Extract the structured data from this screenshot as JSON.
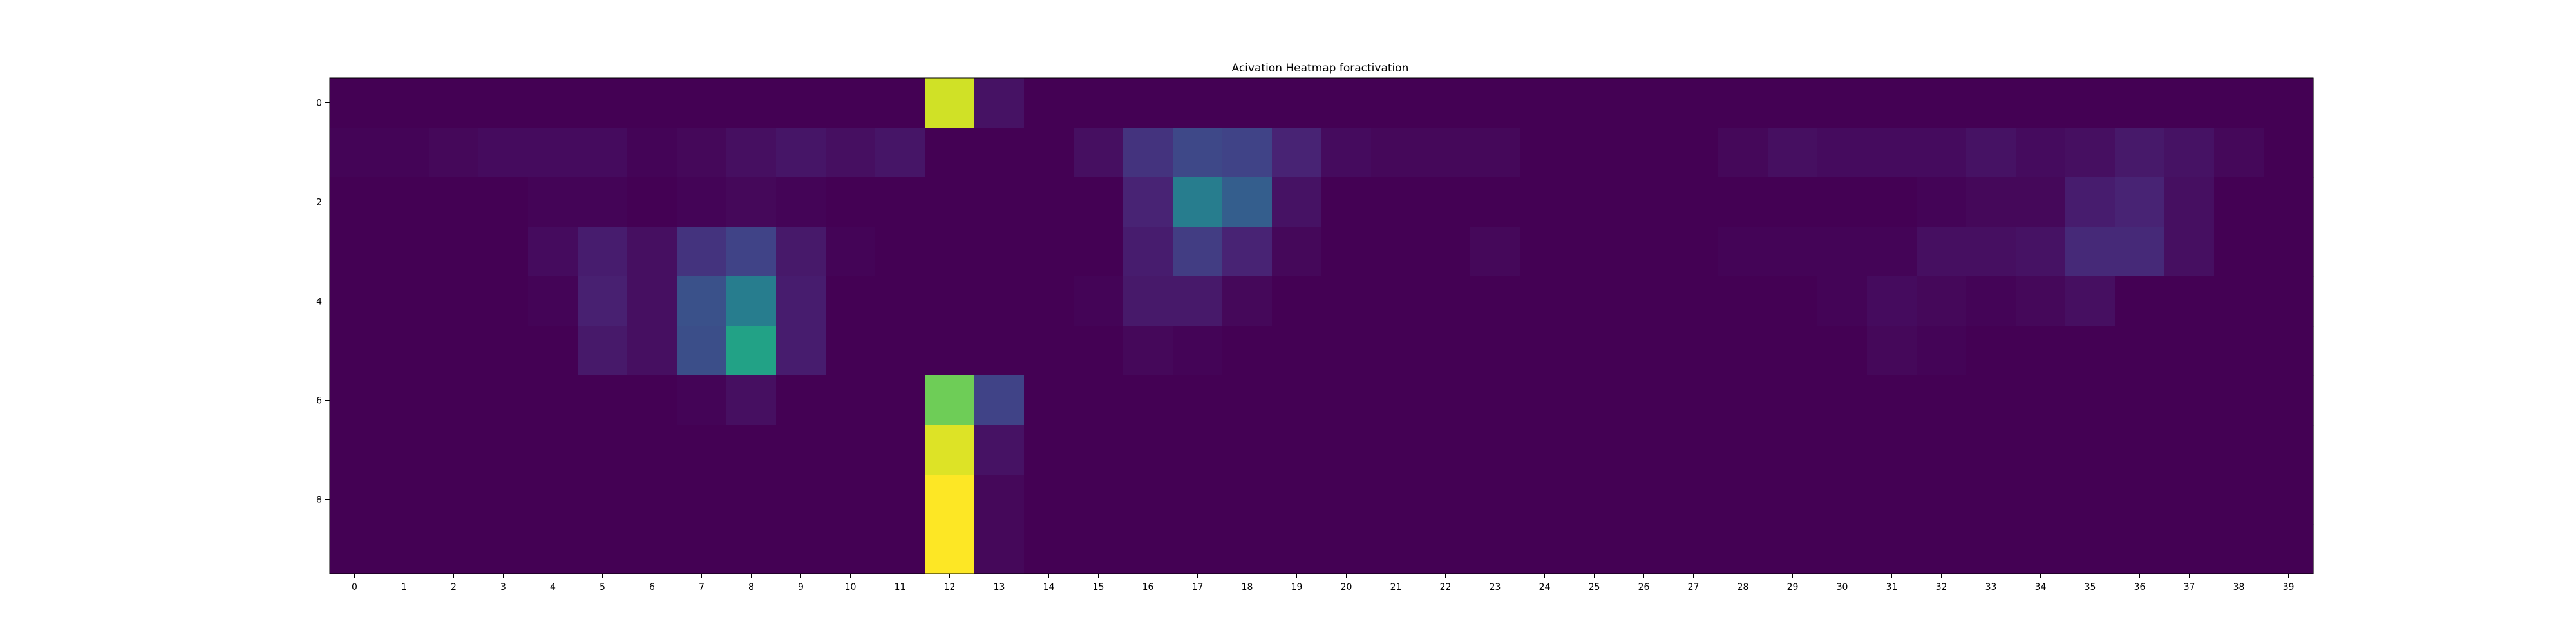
{
  "chart_data": {
    "type": "heatmap",
    "title": "Acivation Heatmap foractivation",
    "xlabel": "",
    "ylabel": "",
    "colormap": "viridis",
    "vmin": 0,
    "vmax": 1,
    "grid": false,
    "legend": "none",
    "x_ticks": [
      "0",
      "1",
      "2",
      "3",
      "4",
      "5",
      "6",
      "7",
      "8",
      "9",
      "10",
      "11",
      "12",
      "13",
      "14",
      "15",
      "16",
      "17",
      "18",
      "19",
      "20",
      "21",
      "22",
      "23",
      "24",
      "25",
      "26",
      "27",
      "28",
      "29",
      "30",
      "31",
      "32",
      "33",
      "34",
      "35",
      "36",
      "37",
      "38",
      "39"
    ],
    "y_ticks": [
      "0",
      "2",
      "4",
      "6",
      "8"
    ],
    "y_tick_rows": [
      0,
      2,
      4,
      6,
      8
    ],
    "rows": 10,
    "cols": 40,
    "values": [
      [
        0,
        0,
        0,
        0,
        0,
        0,
        0,
        0,
        0,
        0,
        0,
        0,
        0.93,
        0.05,
        0,
        0,
        0,
        0,
        0,
        0,
        0,
        0,
        0,
        0,
        0,
        0,
        0,
        0,
        0,
        0,
        0,
        0,
        0,
        0,
        0,
        0,
        0,
        0,
        0,
        0
      ],
      [
        0.01,
        0.01,
        0.02,
        0.03,
        0.03,
        0.03,
        0.01,
        0.02,
        0.04,
        0.06,
        0.04,
        0.06,
        0,
        0,
        0,
        0.04,
        0.15,
        0.22,
        0.2,
        0.1,
        0.03,
        0.02,
        0.02,
        0.02,
        0,
        0,
        0,
        0,
        0.02,
        0.04,
        0.03,
        0.03,
        0.03,
        0.05,
        0.03,
        0.04,
        0.07,
        0.05,
        0.02,
        0
      ],
      [
        0,
        0,
        0,
        0,
        0.01,
        0.01,
        0,
        0.01,
        0.02,
        0.01,
        0,
        0,
        0,
        0,
        0,
        0,
        0.1,
        0.42,
        0.3,
        0.05,
        0,
        0,
        0,
        0,
        0,
        0,
        0,
        0,
        0,
        0,
        0,
        0,
        0.01,
        0.02,
        0.02,
        0.08,
        0.1,
        0.04,
        0,
        0
      ],
      [
        0,
        0,
        0,
        0,
        0.03,
        0.08,
        0.04,
        0.15,
        0.2,
        0.07,
        0.01,
        0,
        0,
        0,
        0,
        0,
        0.08,
        0.18,
        0.1,
        0.02,
        0,
        0,
        0,
        0.02,
        0,
        0,
        0,
        0,
        0.01,
        0.01,
        0.01,
        0.01,
        0.04,
        0.04,
        0.05,
        0.12,
        0.12,
        0.04,
        0,
        0
      ],
      [
        0,
        0,
        0,
        0,
        0.01,
        0.09,
        0.04,
        0.25,
        0.42,
        0.08,
        0,
        0,
        0,
        0,
        0,
        0.01,
        0.07,
        0.07,
        0.02,
        0,
        0,
        0,
        0,
        0,
        0,
        0,
        0,
        0,
        0,
        0,
        0.01,
        0.03,
        0.02,
        0.01,
        0.02,
        0.04,
        0,
        0,
        0,
        0
      ],
      [
        0,
        0,
        0,
        0,
        0,
        0.07,
        0.04,
        0.24,
        0.58,
        0.08,
        0,
        0,
        0,
        0,
        0,
        0,
        0.02,
        0.01,
        0,
        0,
        0,
        0,
        0,
        0,
        0,
        0,
        0,
        0,
        0,
        0,
        0,
        0.02,
        0.01,
        0,
        0,
        0,
        0,
        0,
        0,
        0
      ],
      [
        0,
        0,
        0,
        0,
        0,
        0,
        0,
        0.01,
        0.04,
        0,
        0,
        0,
        0.78,
        0.2,
        0,
        0,
        0,
        0,
        0,
        0,
        0,
        0,
        0,
        0,
        0,
        0,
        0,
        0,
        0,
        0,
        0,
        0,
        0,
        0,
        0,
        0,
        0,
        0,
        0,
        0
      ],
      [
        0,
        0,
        0,
        0,
        0,
        0,
        0,
        0,
        0,
        0,
        0,
        0,
        0.95,
        0.05,
        0,
        0,
        0,
        0,
        0,
        0,
        0,
        0,
        0,
        0,
        0,
        0,
        0,
        0,
        0,
        0,
        0,
        0,
        0,
        0,
        0,
        0,
        0,
        0,
        0,
        0
      ],
      [
        0,
        0,
        0,
        0,
        0,
        0,
        0,
        0,
        0,
        0,
        0,
        0,
        1.0,
        0.02,
        0,
        0,
        0,
        0,
        0,
        0,
        0,
        0,
        0,
        0,
        0,
        0,
        0,
        0,
        0,
        0,
        0,
        0,
        0,
        0,
        0,
        0,
        0,
        0,
        0,
        0
      ],
      [
        0,
        0,
        0,
        0,
        0,
        0,
        0,
        0,
        0,
        0,
        0,
        0,
        1.0,
        0.02,
        0,
        0,
        0,
        0,
        0,
        0,
        0,
        0,
        0,
        0,
        0,
        0,
        0,
        0,
        0,
        0,
        0,
        0,
        0,
        0,
        0,
        0,
        0,
        0,
        0,
        0
      ]
    ]
  }
}
